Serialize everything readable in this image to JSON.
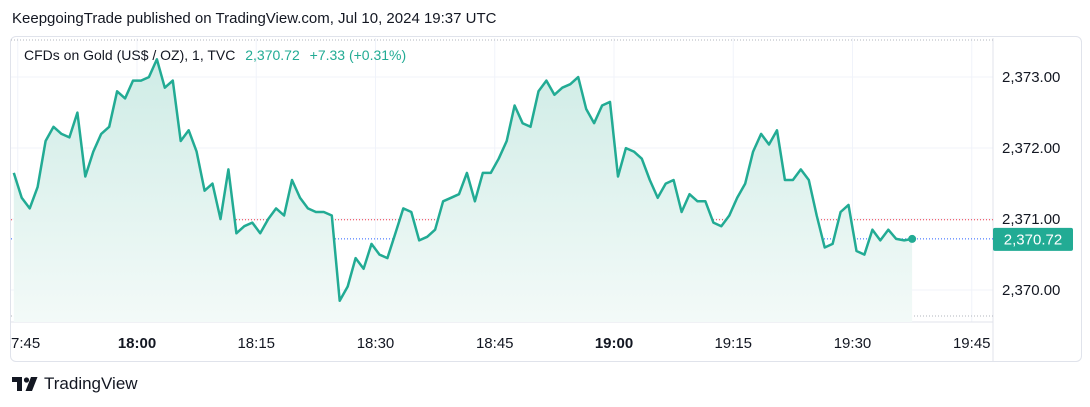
{
  "header": {
    "text": "KeepgoingTrade published on TradingView.com, Jul 10, 2024 19:37 UTC"
  },
  "legend": {
    "symbol": "CFDs on Gold (US$ / OZ), 1, TVC",
    "price": "2,370.72",
    "change": "+7.33 (+0.31%)"
  },
  "footer": {
    "brand": "TradingView"
  },
  "colors": {
    "line": "#22ab94",
    "area_top": "#cfece6",
    "area_bottom": "#f3faf8",
    "prev_close_line": "#f23645",
    "last_price_line": "#2962ff",
    "badge": "#22ab94"
  },
  "chart_data": {
    "type": "area",
    "title": "CFDs on Gold (US$ / OZ), 1, TVC",
    "xlabel": "",
    "ylabel": "",
    "grid": true,
    "ylim": [
      2369.55,
      2373.55
    ],
    "y_ticks": [
      {
        "value": 2373.0,
        "label": "2,373.00"
      },
      {
        "value": 2372.0,
        "label": "2,372.00"
      },
      {
        "value": 2371.0,
        "label": "2,371.00"
      },
      {
        "value": 2370.0,
        "label": "2,370.00"
      }
    ],
    "x_ticks": [
      {
        "t": -15,
        "label": "7:45",
        "bold": false
      },
      {
        "t": 0,
        "label": "18:00",
        "bold": true
      },
      {
        "t": 15,
        "label": "18:15",
        "bold": false
      },
      {
        "t": 30,
        "label": "18:30",
        "bold": false
      },
      {
        "t": 45,
        "label": "18:45",
        "bold": false
      },
      {
        "t": 60,
        "label": "19:00",
        "bold": true
      },
      {
        "t": 75,
        "label": "19:15",
        "bold": false
      },
      {
        "t": 90,
        "label": "19:30",
        "bold": false
      },
      {
        "t": 105,
        "label": "19:45",
        "bold": false
      }
    ],
    "last_price": {
      "value": 2370.72,
      "label": "2,370.72"
    },
    "reference_line": 2370.99,
    "series": [
      {
        "name": "TVC:GOLD",
        "points": [
          [
            -15.5,
            2371.65
          ],
          [
            -14.5,
            2371.3
          ],
          [
            -13.5,
            2371.15
          ],
          [
            -12.5,
            2371.45
          ],
          [
            -11.5,
            2372.1
          ],
          [
            -10.5,
            2372.3
          ],
          [
            -9.5,
            2372.2
          ],
          [
            -8.5,
            2372.15
          ],
          [
            -7.5,
            2372.5
          ],
          [
            -6.5,
            2371.6
          ],
          [
            -5.5,
            2371.95
          ],
          [
            -4.5,
            2372.2
          ],
          [
            -3.5,
            2372.3
          ],
          [
            -2.5,
            2372.8
          ],
          [
            -1.5,
            2372.7
          ],
          [
            -0.5,
            2372.95
          ],
          [
            0.5,
            2372.95
          ],
          [
            1.5,
            2373.0
          ],
          [
            2.5,
            2373.25
          ],
          [
            3.5,
            2372.85
          ],
          [
            4.5,
            2372.95
          ],
          [
            5.5,
            2372.1
          ],
          [
            6.5,
            2372.25
          ],
          [
            7.5,
            2371.95
          ],
          [
            8.5,
            2371.4
          ],
          [
            9.5,
            2371.5
          ],
          [
            10.5,
            2371.0
          ],
          [
            11.5,
            2371.7
          ],
          [
            12.5,
            2370.8
          ],
          [
            13.5,
            2370.9
          ],
          [
            14.5,
            2370.95
          ],
          [
            15.5,
            2370.8
          ],
          [
            16.5,
            2371.0
          ],
          [
            17.5,
            2371.15
          ],
          [
            18.5,
            2371.05
          ],
          [
            19.5,
            2371.55
          ],
          [
            20.5,
            2371.3
          ],
          [
            21.5,
            2371.15
          ],
          [
            22.5,
            2371.1
          ],
          [
            23.5,
            2371.1
          ],
          [
            24.5,
            2371.05
          ],
          [
            25.5,
            2369.85
          ],
          [
            26.5,
            2370.05
          ],
          [
            27.5,
            2370.45
          ],
          [
            28.5,
            2370.3
          ],
          [
            29.5,
            2370.65
          ],
          [
            30.5,
            2370.5
          ],
          [
            31.5,
            2370.45
          ],
          [
            32.5,
            2370.8
          ],
          [
            33.5,
            2371.15
          ],
          [
            34.5,
            2371.1
          ],
          [
            35.5,
            2370.7
          ],
          [
            36.5,
            2370.75
          ],
          [
            37.5,
            2370.85
          ],
          [
            38.5,
            2371.25
          ],
          [
            39.5,
            2371.3
          ],
          [
            40.5,
            2371.35
          ],
          [
            41.5,
            2371.65
          ],
          [
            42.5,
            2371.25
          ],
          [
            43.5,
            2371.65
          ],
          [
            44.5,
            2371.65
          ],
          [
            45.5,
            2371.85
          ],
          [
            46.5,
            2372.1
          ],
          [
            47.5,
            2372.6
          ],
          [
            48.5,
            2372.35
          ],
          [
            49.5,
            2372.3
          ],
          [
            50.5,
            2372.8
          ],
          [
            51.5,
            2372.95
          ],
          [
            52.5,
            2372.75
          ],
          [
            53.5,
            2372.85
          ],
          [
            54.5,
            2372.9
          ],
          [
            55.5,
            2373.0
          ],
          [
            56.5,
            2372.55
          ],
          [
            57.5,
            2372.35
          ],
          [
            58.5,
            2372.6
          ],
          [
            59.5,
            2372.65
          ],
          [
            60.5,
            2371.6
          ],
          [
            61.5,
            2372.0
          ],
          [
            62.5,
            2371.95
          ],
          [
            63.5,
            2371.85
          ],
          [
            64.5,
            2371.55
          ],
          [
            65.5,
            2371.3
          ],
          [
            66.5,
            2371.5
          ],
          [
            67.5,
            2371.55
          ],
          [
            68.5,
            2371.1
          ],
          [
            69.5,
            2371.35
          ],
          [
            70.5,
            2371.25
          ],
          [
            71.5,
            2371.25
          ],
          [
            72.5,
            2370.95
          ],
          [
            73.5,
            2370.9
          ],
          [
            74.5,
            2371.05
          ],
          [
            75.5,
            2371.3
          ],
          [
            76.5,
            2371.5
          ],
          [
            77.5,
            2371.95
          ],
          [
            78.5,
            2372.2
          ],
          [
            79.5,
            2372.05
          ],
          [
            80.5,
            2372.25
          ],
          [
            81.5,
            2371.55
          ],
          [
            82.5,
            2371.55
          ],
          [
            83.5,
            2371.7
          ],
          [
            84.5,
            2371.55
          ],
          [
            85.5,
            2371.05
          ],
          [
            86.5,
            2370.6
          ],
          [
            87.5,
            2370.65
          ],
          [
            88.5,
            2371.1
          ],
          [
            89.5,
            2371.2
          ],
          [
            90.5,
            2370.55
          ],
          [
            91.5,
            2370.5
          ],
          [
            92.5,
            2370.85
          ],
          [
            93.5,
            2370.7
          ],
          [
            94.5,
            2370.85
          ],
          [
            95.5,
            2370.72
          ],
          [
            96.5,
            2370.7
          ],
          [
            97.5,
            2370.72
          ]
        ]
      }
    ]
  }
}
